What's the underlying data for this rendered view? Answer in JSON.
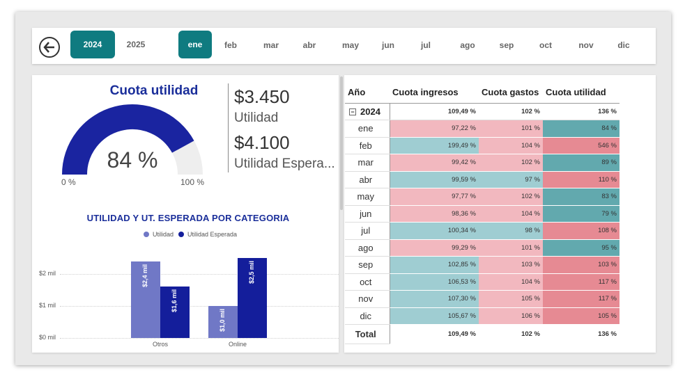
{
  "filters": {
    "years": [
      {
        "label": "2024",
        "active": true
      },
      {
        "label": "2025",
        "active": false
      }
    ],
    "months": [
      {
        "label": "ene",
        "active": true
      },
      {
        "label": "feb",
        "active": false
      },
      {
        "label": "mar",
        "active": false
      },
      {
        "label": "abr",
        "active": false
      },
      {
        "label": "may",
        "active": false
      },
      {
        "label": "jun",
        "active": false
      },
      {
        "label": "jul",
        "active": false
      },
      {
        "label": "ago",
        "active": false
      },
      {
        "label": "sep",
        "active": false
      },
      {
        "label": "oct",
        "active": false
      },
      {
        "label": "nov",
        "active": false
      },
      {
        "label": "dic",
        "active": false
      }
    ]
  },
  "gauge": {
    "title": "Cuota utilidad",
    "value_label": "84 %",
    "value": 0.84,
    "min_label": "0 %",
    "max_label": "100 %",
    "fill_color": "#1a24a0",
    "track_color": "#eeeeee"
  },
  "kpis": {
    "utilidad_value": "$3.450",
    "utilidad_label": "Utilidad",
    "esperada_value": "$4.100",
    "esperada_label": "Utilidad Espera..."
  },
  "chart_data": {
    "type": "bar",
    "title": "UTILIDAD Y UT. ESPERADA POR CATEGORIA",
    "categories": [
      "Otros",
      "Online"
    ],
    "series": [
      {
        "name": "Utilidad",
        "values": [
          2.4,
          1.0
        ],
        "labels": [
          "$2,4 mil",
          "$1,0 mil"
        ],
        "color": "#7078c6"
      },
      {
        "name": "Utilidad Esperada",
        "values": [
          1.6,
          2.5
        ],
        "labels": [
          "$1,6 mil",
          "$2,5 mil"
        ],
        "color": "#141e9b"
      }
    ],
    "yticks": [
      "$0 mil",
      "$1 mil",
      "$2 mil"
    ],
    "ylim": [
      0,
      2.5
    ],
    "legend_position": "top"
  },
  "matrix": {
    "headers": [
      "Año",
      "Cuota ingresos",
      "Cuota gastos",
      "Cuota utilidad"
    ],
    "year_row": {
      "label": "2024",
      "ingresos": "109,49 %",
      "gastos": "102 %",
      "utilidad": "136 %"
    },
    "rows": [
      {
        "month": "ene",
        "ingresos": "97,22 %",
        "gastos": "101 %",
        "utilidad": "84 %"
      },
      {
        "month": "feb",
        "ingresos": "199,49 %",
        "gastos": "104 %",
        "utilidad": "546 %"
      },
      {
        "month": "mar",
        "ingresos": "99,42 %",
        "gastos": "102 %",
        "utilidad": "89 %"
      },
      {
        "month": "abr",
        "ingresos": "99,59 %",
        "gastos": "97 %",
        "utilidad": "110 %"
      },
      {
        "month": "may",
        "ingresos": "97,77 %",
        "gastos": "102 %",
        "utilidad": "83 %"
      },
      {
        "month": "jun",
        "ingresos": "98,36 %",
        "gastos": "104 %",
        "utilidad": "79 %"
      },
      {
        "month": "jul",
        "ingresos": "100,34 %",
        "gastos": "98 %",
        "utilidad": "108 %"
      },
      {
        "month": "ago",
        "ingresos": "99,29 %",
        "gastos": "101 %",
        "utilidad": "95 %"
      },
      {
        "month": "sep",
        "ingresos": "102,85 %",
        "gastos": "103 %",
        "utilidad": "103 %"
      },
      {
        "month": "oct",
        "ingresos": "106,53 %",
        "gastos": "104 %",
        "utilidad": "117 %"
      },
      {
        "month": "nov",
        "ingresos": "107,30 %",
        "gastos": "105 %",
        "utilidad": "117 %"
      },
      {
        "month": "dic",
        "ingresos": "105,67 %",
        "gastos": "106 %",
        "utilidad": "105 %"
      }
    ],
    "total_row": {
      "label": "Total",
      "ingresos": "109,49 %",
      "gastos": "102 %",
      "utilidad": "136 %"
    },
    "colors": {
      "ingresos_good": "#9fcdd2",
      "ingresos_bad": "#f2b8bf",
      "gastos_good": "#f2b8bf",
      "gastos_bad": "#9fcdd2",
      "utilidad_good": "#e68a93",
      "utilidad_bad": "#62a9ae"
    }
  }
}
